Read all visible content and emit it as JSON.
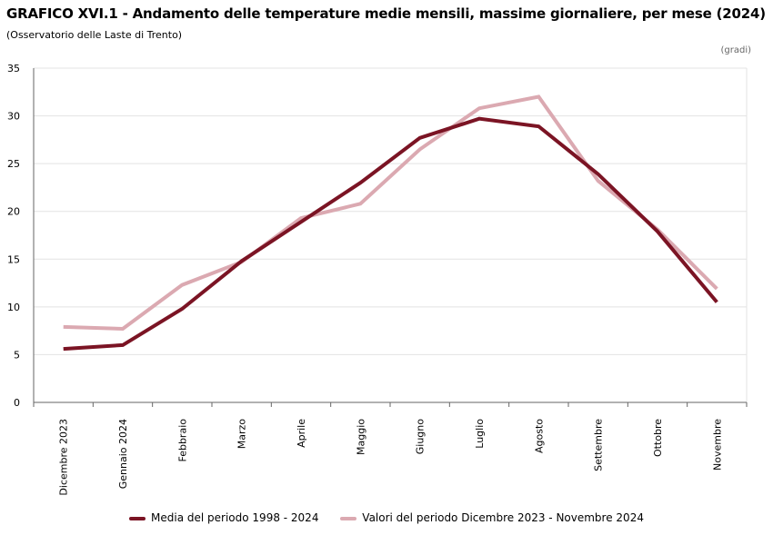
{
  "chart_data": {
    "type": "line",
    "title": "GRAFICO XVI.1 - Andamento delle temperature medie mensili, massime giornaliere, per mese (2024)",
    "subtitle": "(Osservatorio delle Laste di Trento)",
    "unit_label": "(gradi)",
    "xlabel": "",
    "ylabel": "",
    "ylim": [
      0,
      35
    ],
    "yticks": [
      0,
      5,
      10,
      15,
      20,
      25,
      30,
      35
    ],
    "categories": [
      "Dicembre 2023",
      "Gennaio 2024",
      "Febbraio",
      "Marzo",
      "Aprile",
      "Maggio",
      "Giugno",
      "Luglio",
      "Agosto",
      "Settembre",
      "Ottobre",
      "Novembre"
    ],
    "series": [
      {
        "name": "Media del periodo 1998 - 2024",
        "color": "#7b1424",
        "values": [
          5.6,
          6.0,
          9.8,
          14.8,
          18.9,
          23.0,
          27.7,
          29.7,
          28.9,
          23.9,
          17.9,
          10.5
        ]
      },
      {
        "name": "Valori del periodo Dicembre 2023 - Novembre 2024",
        "color": "#dba9b1",
        "values": [
          7.9,
          7.7,
          12.3,
          14.7,
          19.3,
          20.8,
          26.5,
          30.8,
          32.0,
          23.2,
          18.1,
          11.9
        ]
      }
    ],
    "grid": true,
    "legend_position": "bottom"
  }
}
